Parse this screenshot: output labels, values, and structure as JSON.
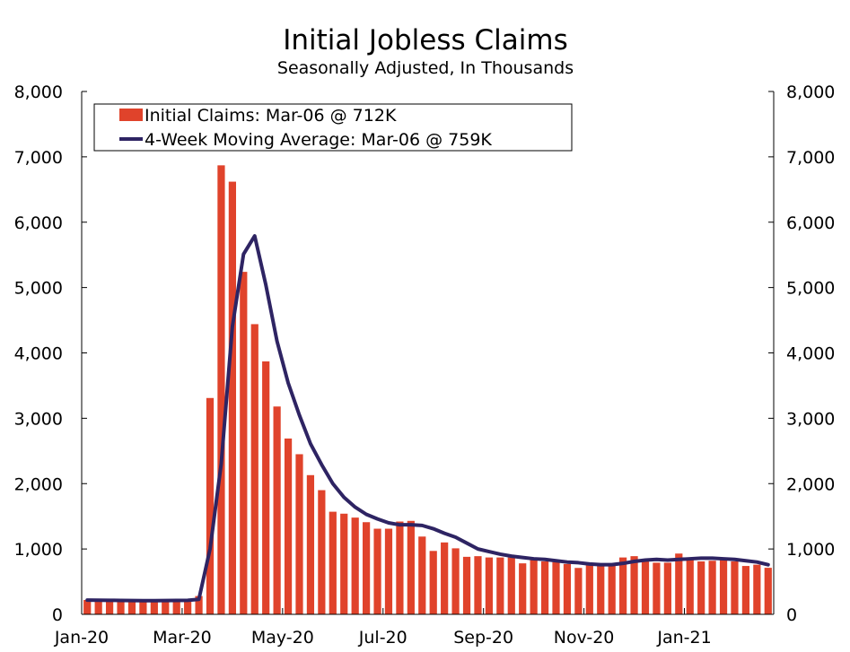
{
  "chart_data": {
    "type": "bar",
    "title": "Initial Jobless Claims",
    "subtitle": "Seasonally Adjusted, In Thousands",
    "ylim": [
      0,
      8000
    ],
    "y_ticks": [
      "0",
      "1,000",
      "2,000",
      "3,000",
      "4,000",
      "5,000",
      "6,000",
      "7,000",
      "8,000"
    ],
    "y_tick_values": [
      0,
      1000,
      2000,
      3000,
      4000,
      5000,
      6000,
      7000,
      8000
    ],
    "x_tick_labels": [
      "Jan-20",
      "Mar-20",
      "May-20",
      "Jul-20",
      "Sep-20",
      "Nov-20",
      "Jan-21"
    ],
    "x_tick_week_index": [
      0,
      9,
      18,
      27,
      36,
      45,
      54
    ],
    "dual_axis_same_scale": true,
    "legend_placement": "top-left",
    "grid": false,
    "colors": {
      "bars": "#E0432B",
      "line": "#2E2463"
    },
    "series": [
      {
        "name": "Initial Claims: Mar-06 @ 712K",
        "kind": "bar",
        "values": [
          220,
          215,
          215,
          210,
          210,
          205,
          210,
          210,
          215,
          220,
          280,
          3310,
          6870,
          6620,
          5240,
          4440,
          3870,
          3180,
          2690,
          2450,
          2130,
          1900,
          1570,
          1540,
          1480,
          1410,
          1310,
          1310,
          1420,
          1430,
          1190,
          970,
          1100,
          1010,
          880,
          890,
          870,
          870,
          870,
          780,
          840,
          810,
          800,
          770,
          710,
          750,
          780,
          750,
          870,
          890,
          820,
          790,
          790,
          930,
          840,
          810,
          820,
          830,
          810,
          740,
          760,
          712
        ]
      },
      {
        "name": "4-Week Moving Average: Mar-06 @ 759K",
        "kind": "line",
        "values": [
          218,
          216,
          215,
          213,
          211,
          209,
          209,
          211,
          213,
          215,
          230,
          1000,
          2300,
          4400,
          5510,
          5790,
          5040,
          4180,
          3540,
          3050,
          2610,
          2290,
          2000,
          1790,
          1640,
          1530,
          1460,
          1400,
          1370,
          1370,
          1360,
          1310,
          1240,
          1180,
          1090,
          1000,
          960,
          920,
          890,
          870,
          850,
          840,
          820,
          800,
          790,
          770,
          760,
          760,
          780,
          810,
          830,
          840,
          830,
          840,
          850,
          860,
          860,
          850,
          840,
          820,
          800,
          759
        ]
      }
    ]
  }
}
